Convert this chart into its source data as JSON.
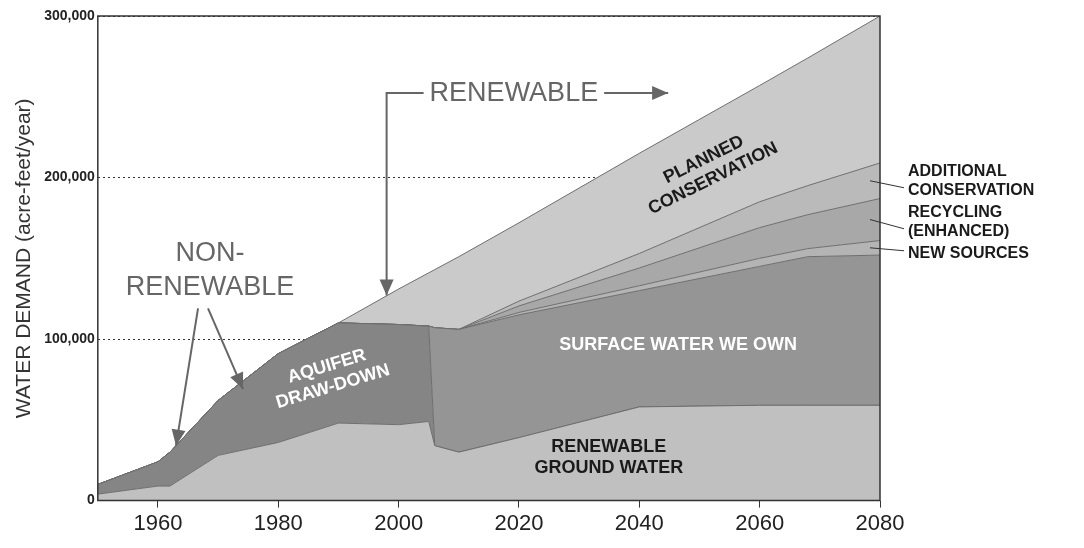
{
  "chart_data": {
    "type": "area",
    "stacked": true,
    "ylabel": "WATER DEMAND (acre-feet/year)",
    "x": [
      1950,
      1960,
      1962,
      1970,
      1980,
      1990,
      2000,
      2005,
      2006,
      2010,
      2020,
      2040,
      2060,
      2068,
      2080
    ],
    "xlim": [
      1950,
      2080
    ],
    "xticks": [
      1960,
      1980,
      2000,
      2020,
      2040,
      2060,
      2080
    ],
    "ylim": [
      0,
      300000
    ],
    "yticks": [
      0,
      {
        "value": 100000,
        "label": "100,000"
      },
      {
        "value": 200000,
        "label": "200,000"
      },
      {
        "value": 300000,
        "label": "300,000"
      }
    ],
    "grid": "y",
    "series": [
      {
        "name": "RENEWABLE GROUND WATER",
        "color": "#c0c0c0",
        "values": [
          4000,
          9000,
          9000,
          28000,
          36000,
          48000,
          47000,
          49000,
          34000,
          30000,
          39000,
          58000,
          59000,
          59000,
          59000
        ]
      },
      {
        "name": "AQUIFER DRAW-DOWN",
        "color": "#858585",
        "values": [
          6000,
          15000,
          21000,
          34000,
          55000,
          62000,
          62000,
          59000,
          0,
          0,
          0,
          0,
          0,
          0,
          0
        ]
      },
      {
        "name": "SURFACE WATER WE OWN",
        "color": "#959595",
        "values": [
          0,
          0,
          0,
          0,
          0,
          0,
          0,
          0,
          73000,
          76000,
          76000,
          72000,
          86000,
          92000,
          93000
        ]
      },
      {
        "name": "NEW SOURCES",
        "color": "#b4b4b4",
        "values": [
          0,
          0,
          0,
          0,
          0,
          0,
          0,
          0,
          0,
          0,
          1500,
          3000,
          5000,
          5000,
          9000
        ]
      },
      {
        "name": "RECYCLING (ENHANCED)",
        "color": "#a8a8a8",
        "values": [
          0,
          0,
          0,
          0,
          0,
          0,
          0,
          0,
          0,
          0,
          4000,
          11000,
          19000,
          21000,
          26000
        ]
      },
      {
        "name": "ADDITIONAL CONSERVATION",
        "color": "#bababa",
        "values": [
          0,
          0,
          0,
          0,
          0,
          0,
          0,
          0,
          0,
          0,
          3000,
          9000,
          16000,
          18000,
          22000
        ]
      },
      {
        "name": "PLANNED CONSERVATION",
        "color": "#cacaca",
        "values": [
          0,
          0,
          0,
          0,
          0,
          0,
          22000,
          33000,
          36000,
          45000,
          48500,
          62000,
          72000,
          79000,
          91000
        ]
      }
    ],
    "annotations": [
      {
        "text": "RENEWABLE",
        "x": 1998,
        "y": 127000
      },
      {
        "text": "NON-RENEWABLE",
        "x": 1963,
        "y": 34000
      }
    ]
  }
}
